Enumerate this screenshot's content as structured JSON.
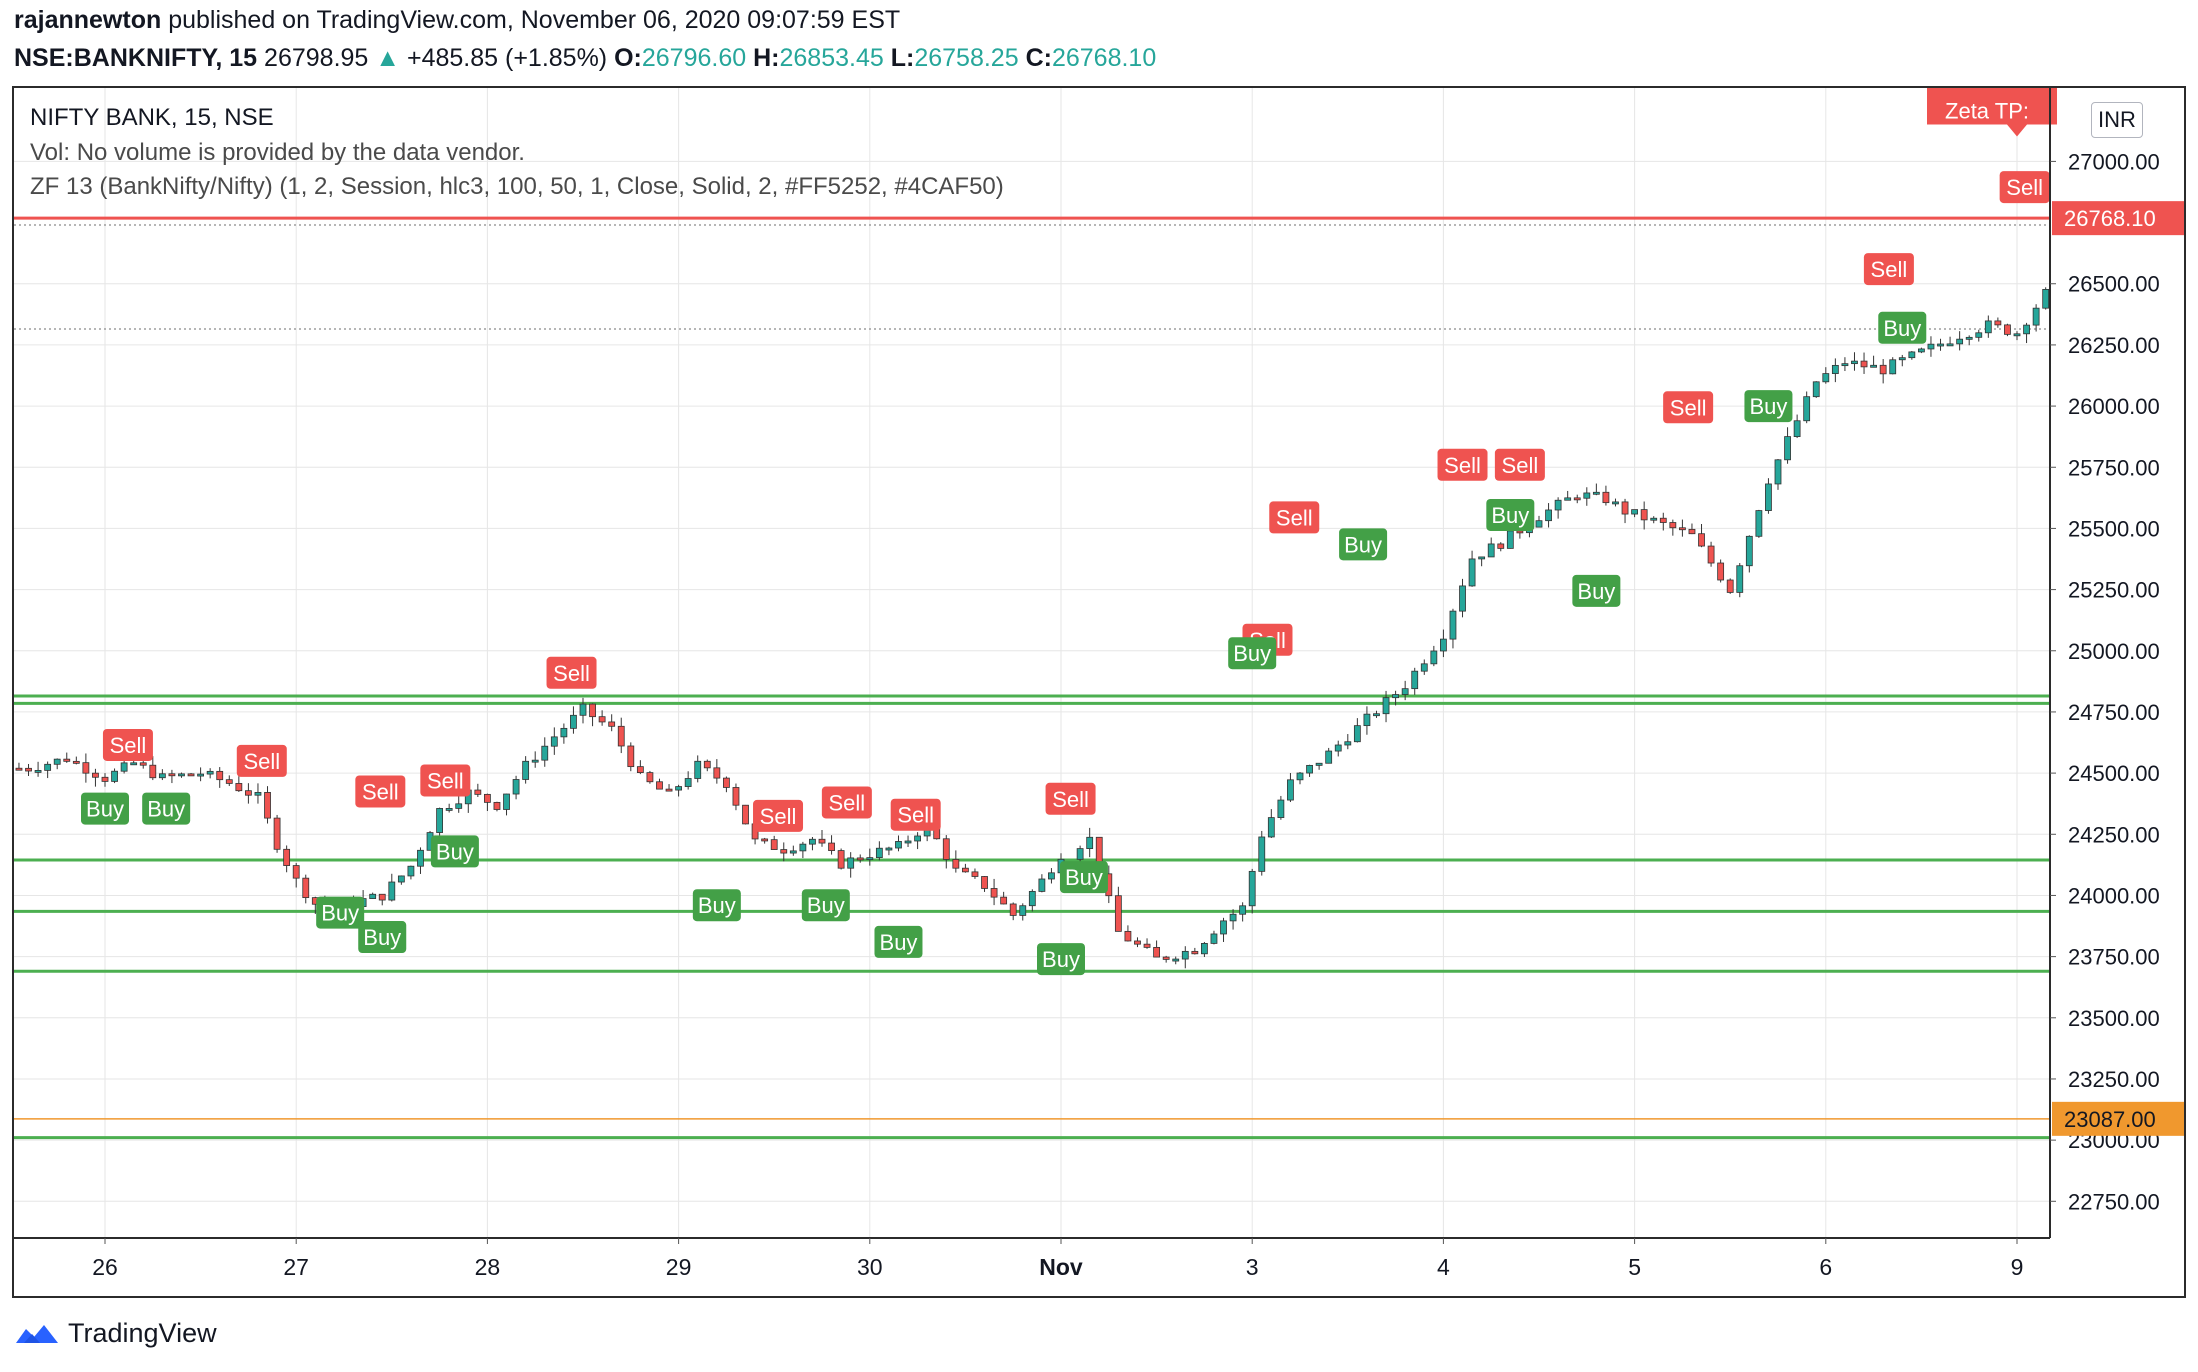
{
  "header": {
    "author": "rajannewton",
    "published_text": "published on TradingView.com, November 06, 2020 09:07:59 EST",
    "symbol": "NSE:BANKNIFTY, 15",
    "last": "26798.95",
    "up_arrow": "▲",
    "change": "+485.85 (+1.85%)",
    "o_label": "O:",
    "o_value": "26796.60",
    "h_label": "H:",
    "h_value": "26853.45",
    "l_label": "L:",
    "l_value": "26758.25",
    "c_label": "C:",
    "c_value": "26768.10"
  },
  "legend": {
    "title": "NIFTY BANK, 15, NSE",
    "volume": "Vol: No volume is provided by the data vendor.",
    "indicator": "ZF 13 (BankNifty/Nifty) (1, 2, Session, hlc3, 100, 50, 1, Close, Solid, 2, #FF5252, #4CAF50)"
  },
  "currency_button": "INR",
  "footer": {
    "brand": "TradingView",
    "icon": "tradingview-logo-icon"
  },
  "colors": {
    "up": "#26a69a",
    "down": "#ef5350",
    "sell": "#ef5350",
    "buy": "#43a047",
    "level": "#4caf50",
    "orange": "#f0982e",
    "grid": "#e6e6e6"
  },
  "chart_data": {
    "type": "candlestick",
    "title": "NIFTY BANK, 15, NSE",
    "y_axis": {
      "min": 22600,
      "max": 27300,
      "ticks": [
        22750,
        23000,
        23250,
        23500,
        23750,
        24000,
        24250,
        24500,
        24750,
        25000,
        25250,
        25500,
        25750,
        26000,
        26250,
        26500,
        27000
      ],
      "tick_labels": [
        "22750.00",
        "23000.00",
        "23250.00",
        "23500.00",
        "23750.00",
        "24000.00",
        "24250.00",
        "24500.00",
        "24750.00",
        "25000.00",
        "25250.00",
        "25500.00",
        "25750.00",
        "26000.00",
        "26250.00",
        "26500.00",
        "27000.00"
      ],
      "position": "right"
    },
    "x_axis": {
      "labels": [
        "26",
        "27",
        "28",
        "29",
        "30",
        "Nov",
        "3",
        "4",
        "5",
        "6",
        "9"
      ],
      "index_min": 0,
      "index_max": 10.7
    },
    "grid": true,
    "price_labels": [
      {
        "value": 26768.1,
        "label": "26768.10",
        "color": "#ef5350"
      },
      {
        "value": 23087.0,
        "label": "23087.00",
        "color": "#f0982e"
      }
    ],
    "horizontal_lines": [
      {
        "value": 26768,
        "color": "#ef5350",
        "style": "solid"
      },
      {
        "value": 26740,
        "color": "#9e9e9e",
        "style": "dotted"
      },
      {
        "value": 26315,
        "color": "#9e9e9e",
        "style": "dotted"
      },
      {
        "value": 24815,
        "color": "#4caf50",
        "style": "solid"
      },
      {
        "value": 24785,
        "color": "#4caf50",
        "style": "solid"
      },
      {
        "value": 24145,
        "color": "#4caf50",
        "style": "solid"
      },
      {
        "value": 23935,
        "color": "#4caf50",
        "style": "solid"
      },
      {
        "value": 23690,
        "color": "#4caf50",
        "style": "solid"
      },
      {
        "value": 23087,
        "color": "#f0982e",
        "style": "solid"
      },
      {
        "value": 23010,
        "color": "#4caf50",
        "style": "solid"
      }
    ],
    "close_series": {
      "x": [
        -0.4,
        -0.2,
        0.0,
        0.15,
        0.3,
        0.5,
        0.65,
        0.8,
        0.9,
        1.0,
        1.15,
        1.3,
        1.45,
        1.6,
        1.75,
        1.9,
        2.05,
        2.2,
        2.35,
        2.5,
        2.65,
        2.8,
        2.95,
        3.1,
        3.25,
        3.4,
        3.55,
        3.7,
        3.85,
        4.0,
        4.15,
        4.3,
        4.45,
        4.6,
        4.75,
        4.9,
        5.0,
        5.15,
        5.3,
        5.5,
        5.7,
        5.85,
        5.95,
        6.05,
        6.2,
        6.4,
        6.6,
        6.8,
        7.0,
        7.15,
        7.3,
        7.5,
        7.7,
        7.85,
        7.95,
        8.1,
        8.3,
        8.5,
        8.7,
        8.95,
        9.1,
        9.3,
        9.5,
        9.7,
        9.85,
        10.0,
        10.15,
        10.35,
        10.55,
        10.7,
        10.85,
        11.0
      ],
      "y": [
        24520,
        24560,
        24480,
        24540,
        24480,
        24500,
        24460,
        24400,
        24210,
        24060,
        23920,
        23970,
        24000,
        24120,
        24350,
        24420,
        24370,
        24530,
        24650,
        24760,
        24680,
        24480,
        24410,
        24530,
        24460,
        24220,
        24190,
        24230,
        24130,
        24170,
        24200,
        24290,
        24100,
        24040,
        23920,
        24060,
        24170,
        24230,
        23850,
        23740,
        23780,
        23900,
        23950,
        24250,
        24460,
        24580,
        24720,
        24860,
        25070,
        25380,
        25440,
        25550,
        25640,
        25620,
        25570,
        25530,
        25470,
        25250,
        25700,
        26100,
        26180,
        26150,
        26220,
        26290,
        26330,
        26300,
        26460,
        26590,
        26760,
        26620,
        26800,
        26770
      ]
    },
    "signals": [
      {
        "type": "Sell",
        "x": 0.12,
        "y": 24615
      },
      {
        "type": "Buy",
        "x": 0.0,
        "y": 24355
      },
      {
        "type": "Buy",
        "x": 0.32,
        "y": 24355
      },
      {
        "type": "Sell",
        "x": 0.82,
        "y": 24550
      },
      {
        "type": "Sell",
        "x": 1.44,
        "y": 24425
      },
      {
        "type": "Buy",
        "x": 1.23,
        "y": 23930
      },
      {
        "type": "Buy",
        "x": 1.45,
        "y": 23830
      },
      {
        "type": "Sell",
        "x": 1.78,
        "y": 24470
      },
      {
        "type": "Buy",
        "x": 1.83,
        "y": 24180
      },
      {
        "type": "Sell",
        "x": 2.44,
        "y": 24910
      },
      {
        "type": "Buy",
        "x": 3.2,
        "y": 23960
      },
      {
        "type": "Sell",
        "x": 3.52,
        "y": 24325
      },
      {
        "type": "Buy",
        "x": 3.77,
        "y": 23960
      },
      {
        "type": "Sell",
        "x": 3.88,
        "y": 24380
      },
      {
        "type": "Buy",
        "x": 4.15,
        "y": 23810
      },
      {
        "type": "Sell",
        "x": 4.24,
        "y": 24330
      },
      {
        "type": "Buy",
        "x": 5.0,
        "y": 23740
      },
      {
        "type": "Sell",
        "x": 5.05,
        "y": 24395
      },
      {
        "type": "Buy",
        "x": 5.12,
        "y": 24075
      },
      {
        "type": "Sell",
        "x": 6.08,
        "y": 25045
      },
      {
        "type": "Buy",
        "x": 6.0,
        "y": 24990
      },
      {
        "type": "Sell",
        "x": 6.22,
        "y": 25545
      },
      {
        "type": "Buy",
        "x": 6.58,
        "y": 25435
      },
      {
        "type": "Sell",
        "x": 7.1,
        "y": 25760
      },
      {
        "type": "Buy",
        "x": 7.35,
        "y": 25555
      },
      {
        "type": "Sell",
        "x": 7.4,
        "y": 25760
      },
      {
        "type": "Buy",
        "x": 7.8,
        "y": 25245
      },
      {
        "type": "Sell",
        "x": 8.28,
        "y": 25995
      },
      {
        "type": "Buy",
        "x": 8.7,
        "y": 26000
      },
      {
        "type": "Sell",
        "x": 9.33,
        "y": 26560
      },
      {
        "type": "Buy",
        "x": 9.4,
        "y": 26320
      },
      {
        "type": "Sell",
        "x": 10.04,
        "y": 26895
      }
    ],
    "top_marker": {
      "label": "Zeta TP:",
      "value": 27200
    }
  }
}
